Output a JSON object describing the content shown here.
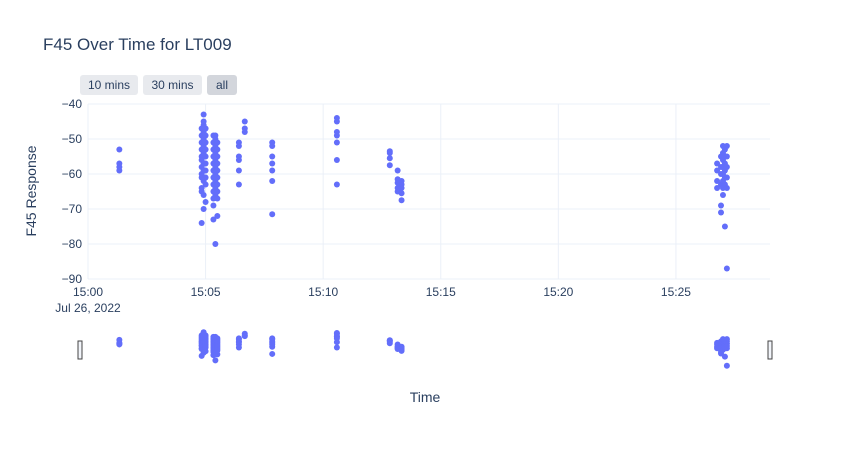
{
  "chart_data": {
    "type": "scatter",
    "title": "F45 Over Time for LT009",
    "xlabel": "Time",
    "ylabel": "F45 Response",
    "xlim": [
      "2022-07-26 15:00:00",
      "2022-07-26 15:29:00"
    ],
    "ylim": [
      -90,
      -40
    ],
    "x_tick_labels": [
      "15:00",
      "15:05",
      "15:10",
      "15:15",
      "15:20",
      "15:25"
    ],
    "x_tick_date_label": "Jul 26, 2022",
    "y_tick_values": [
      -40,
      -50,
      -60,
      -70,
      -80,
      -90
    ],
    "range_buttons": [
      "10 mins",
      "30 mins",
      "all"
    ],
    "active_button": "all",
    "marker_color": "#636efa",
    "grid": true,
    "legend": "none",
    "rangeslider": true,
    "series": [
      {
        "x": [
          "2022-07-26 15:01:20",
          "2022-07-26 15:01:20",
          "2022-07-26 15:01:20",
          "2022-07-26 15:01:20",
          "2022-07-26 15:04:50",
          "2022-07-26 15:04:50",
          "2022-07-26 15:04:50",
          "2022-07-26 15:04:50",
          "2022-07-26 15:04:50",
          "2022-07-26 15:04:50",
          "2022-07-26 15:04:50",
          "2022-07-26 15:04:50",
          "2022-07-26 15:04:50",
          "2022-07-26 15:04:50",
          "2022-07-26 15:04:50",
          "2022-07-26 15:04:50",
          "2022-07-26 15:04:55",
          "2022-07-26 15:04:55",
          "2022-07-26 15:04:55",
          "2022-07-26 15:04:55",
          "2022-07-26 15:04:55",
          "2022-07-26 15:04:55",
          "2022-07-26 15:04:55",
          "2022-07-26 15:04:55",
          "2022-07-26 15:04:55",
          "2022-07-26 15:04:55",
          "2022-07-26 15:04:55",
          "2022-07-26 15:04:55",
          "2022-07-26 15:05:00",
          "2022-07-26 15:05:00",
          "2022-07-26 15:05:00",
          "2022-07-26 15:05:00",
          "2022-07-26 15:05:00",
          "2022-07-26 15:05:00",
          "2022-07-26 15:05:00",
          "2022-07-26 15:05:00",
          "2022-07-26 15:05:00",
          "2022-07-26 15:05:00",
          "2022-07-26 15:05:20",
          "2022-07-26 15:05:20",
          "2022-07-26 15:05:20",
          "2022-07-26 15:05:20",
          "2022-07-26 15:05:20",
          "2022-07-26 15:05:20",
          "2022-07-26 15:05:20",
          "2022-07-26 15:05:20",
          "2022-07-26 15:05:20",
          "2022-07-26 15:05:20",
          "2022-07-26 15:05:20",
          "2022-07-26 15:05:20",
          "2022-07-26 15:05:25",
          "2022-07-26 15:05:25",
          "2022-07-26 15:05:25",
          "2022-07-26 15:05:25",
          "2022-07-26 15:05:25",
          "2022-07-26 15:05:25",
          "2022-07-26 15:05:25",
          "2022-07-26 15:05:25",
          "2022-07-26 15:05:25",
          "2022-07-26 15:05:25",
          "2022-07-26 15:05:25",
          "2022-07-26 15:05:30",
          "2022-07-26 15:05:30",
          "2022-07-26 15:05:30",
          "2022-07-26 15:05:30",
          "2022-07-26 15:05:30",
          "2022-07-26 15:05:30",
          "2022-07-26 15:05:30",
          "2022-07-26 15:05:30",
          "2022-07-26 15:05:30",
          "2022-07-26 15:05:30",
          "2022-07-26 15:06:25",
          "2022-07-26 15:06:25",
          "2022-07-26 15:06:25",
          "2022-07-26 15:06:25",
          "2022-07-26 15:06:25",
          "2022-07-26 15:06:25",
          "2022-07-26 15:06:40",
          "2022-07-26 15:06:40",
          "2022-07-26 15:06:40",
          "2022-07-26 15:07:50",
          "2022-07-26 15:07:50",
          "2022-07-26 15:07:50",
          "2022-07-26 15:07:50",
          "2022-07-26 15:07:50",
          "2022-07-26 15:07:50",
          "2022-07-26 15:07:50",
          "2022-07-26 15:10:35",
          "2022-07-26 15:10:35",
          "2022-07-26 15:10:35",
          "2022-07-26 15:10:35",
          "2022-07-26 15:10:35",
          "2022-07-26 15:10:35",
          "2022-07-26 15:10:35",
          "2022-07-26 15:12:50",
          "2022-07-26 15:12:50",
          "2022-07-26 15:12:50",
          "2022-07-26 15:12:50",
          "2022-07-26 15:13:10",
          "2022-07-26 15:13:10",
          "2022-07-26 15:13:10",
          "2022-07-26 15:13:10",
          "2022-07-26 15:13:10",
          "2022-07-26 15:13:20",
          "2022-07-26 15:13:20",
          "2022-07-26 15:13:20",
          "2022-07-26 15:13:20",
          "2022-07-26 15:13:20",
          "2022-07-26 15:26:45",
          "2022-07-26 15:26:45",
          "2022-07-26 15:26:45",
          "2022-07-26 15:26:45",
          "2022-07-26 15:26:55",
          "2022-07-26 15:26:55",
          "2022-07-26 15:26:55",
          "2022-07-26 15:26:55",
          "2022-07-26 15:26:55",
          "2022-07-26 15:26:55",
          "2022-07-26 15:27:00",
          "2022-07-26 15:27:00",
          "2022-07-26 15:27:00",
          "2022-07-26 15:27:00",
          "2022-07-26 15:27:00",
          "2022-07-26 15:27:00",
          "2022-07-26 15:27:00",
          "2022-07-26 15:27:00",
          "2022-07-26 15:27:05",
          "2022-07-26 15:27:05",
          "2022-07-26 15:27:05",
          "2022-07-26 15:27:05",
          "2022-07-26 15:27:05",
          "2022-07-26 15:27:05",
          "2022-07-26 15:27:05",
          "2022-07-26 15:27:10",
          "2022-07-26 15:27:10",
          "2022-07-26 15:27:10",
          "2022-07-26 15:27:10",
          "2022-07-26 15:27:10",
          "2022-07-26 15:27:10"
        ],
        "y": [
          -53,
          -57,
          -58,
          -59,
          -47,
          -49,
          -51,
          -53,
          -55,
          -56,
          -58,
          -60,
          -61,
          -64,
          -65,
          -74,
          -43,
          -45,
          -46,
          -48,
          -50,
          -52,
          -54,
          -57,
          -59,
          -62,
          -66,
          -70,
          -47,
          -49,
          -51,
          -53,
          -55,
          -57,
          -59,
          -61,
          -63,
          -68,
          -49,
          -51,
          -53,
          -55,
          -57,
          -59,
          -61,
          -63,
          -65,
          -67,
          -69,
          -73,
          -49,
          -50,
          -52,
          -54,
          -56,
          -58,
          -60,
          -62,
          -64,
          -66,
          -80,
          -51,
          -53,
          -55,
          -57,
          -59,
          -61,
          -63,
          -65,
          -67,
          -72,
          -51,
          -52,
          -55,
          -56,
          -59,
          -63,
          -45,
          -47,
          -48,
          -51,
          -52,
          -55,
          -57,
          -59,
          -62,
          -71.5,
          -44,
          -45,
          -48,
          -49,
          -51,
          -56,
          -63,
          -53.5,
          -54,
          -55.5,
          -57.5,
          -59,
          -61.5,
          -62.5,
          -64,
          -65,
          -62,
          -63,
          -64,
          -65.5,
          -67.5,
          -57,
          -59,
          -62,
          -64,
          -55,
          -58,
          -60,
          -63,
          -69,
          -71,
          -52,
          -54,
          -56,
          -58,
          -60,
          -62,
          -64,
          -66,
          -53,
          -55,
          -57,
          -59,
          -61,
          -63,
          -75,
          -52,
          -55,
          -58,
          -61,
          -64,
          -87
        ]
      }
    ]
  }
}
